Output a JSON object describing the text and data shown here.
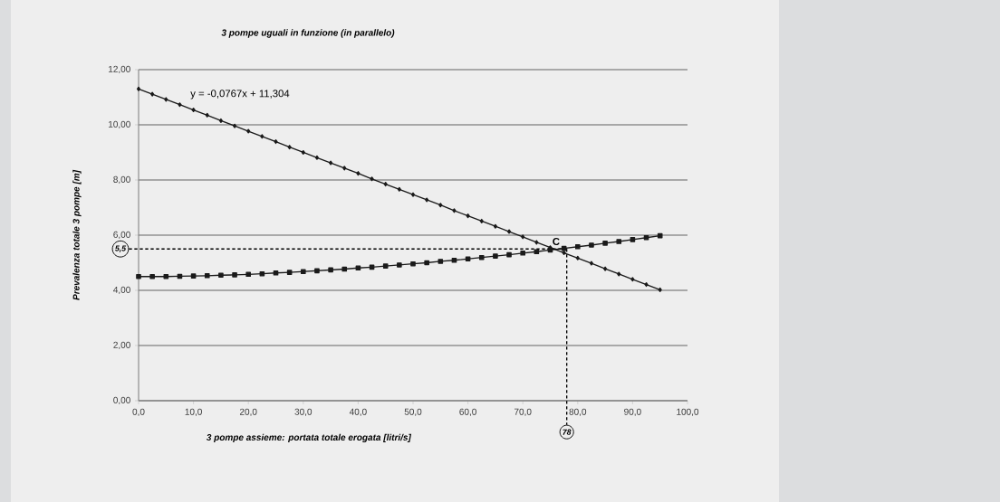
{
  "chart_data": {
    "type": "line",
    "title": "3 pompe uguali  in funzione (in parallelo)",
    "xlabel": "3 pompe assieme:   portata totale erogata [litri/s]",
    "ylabel": "Prevalenza totale 3 pompe [m]",
    "x": [
      0,
      2.5,
      5,
      7.5,
      10,
      12.5,
      15,
      17.5,
      20,
      22.5,
      25,
      27.5,
      30,
      32.5,
      35,
      37.5,
      40,
      42.5,
      45,
      47.5,
      50,
      52.5,
      55,
      57.5,
      60,
      62.5,
      65,
      67.5,
      70,
      72.5,
      75,
      77.5,
      80,
      82.5,
      85,
      87.5,
      90,
      92.5,
      95
    ],
    "series": [
      {
        "color": "#1a1a1a",
        "marker": "diamond",
        "values": [
          11.3,
          11.11,
          10.92,
          10.73,
          10.54,
          10.35,
          10.15,
          9.96,
          9.77,
          9.58,
          9.39,
          9.19,
          9.0,
          8.81,
          8.62,
          8.43,
          8.24,
          8.04,
          7.85,
          7.66,
          7.47,
          7.28,
          7.09,
          6.89,
          6.7,
          6.51,
          6.32,
          6.13,
          5.94,
          5.74,
          5.55,
          5.36,
          5.17,
          4.98,
          4.78,
          4.59,
          4.4,
          4.21,
          4.02
        ]
      },
      {
        "color": "#1a1a1a",
        "marker": "square",
        "values": [
          4.5,
          4.5,
          4.5,
          4.51,
          4.52,
          4.53,
          4.55,
          4.56,
          4.58,
          4.6,
          4.63,
          4.65,
          4.68,
          4.71,
          4.74,
          4.77,
          4.81,
          4.84,
          4.88,
          4.92,
          4.96,
          5.0,
          5.05,
          5.09,
          5.14,
          5.19,
          5.24,
          5.29,
          5.35,
          5.4,
          5.46,
          5.52,
          5.58,
          5.64,
          5.71,
          5.77,
          5.84,
          5.91,
          5.98
        ]
      }
    ],
    "xlim": [
      0,
      100
    ],
    "ylim": [
      0,
      12
    ],
    "xticks": [
      {
        "value": 0,
        "label": "0,0"
      },
      {
        "value": 10,
        "label": "10,0"
      },
      {
        "value": 20,
        "label": "20,0"
      },
      {
        "value": 30,
        "label": "30,0"
      },
      {
        "value": 40,
        "label": "40,0"
      },
      {
        "value": 50,
        "label": "50,0"
      },
      {
        "value": 60,
        "label": "60,0"
      },
      {
        "value": 70,
        "label": "70,0"
      },
      {
        "value": 80,
        "label": "80,0"
      },
      {
        "value": 90,
        "label": "90,0"
      },
      {
        "value": 100,
        "label": "100,0"
      }
    ],
    "yticks": [
      {
        "value": 0,
        "label": "0,00"
      },
      {
        "value": 2,
        "label": "2,00"
      },
      {
        "value": 4,
        "label": "4,00"
      },
      {
        "value": 6,
        "label": "6,00"
      },
      {
        "value": 8,
        "label": "8,00"
      },
      {
        "value": 10,
        "label": "10,00"
      },
      {
        "value": 12,
        "label": "12,00"
      }
    ],
    "grid": "y",
    "ref_lines": [
      {
        "axis": "y",
        "value": 5.5,
        "label": "5,5",
        "line_style": "dashed"
      },
      {
        "axis": "x",
        "value": 78,
        "label": "78",
        "line_style": "dashed"
      }
    ],
    "annotations": [
      "y = -0,0767x + 11,304",
      {
        "text": "C",
        "x": 76.5,
        "y": 5.5
      }
    ]
  }
}
